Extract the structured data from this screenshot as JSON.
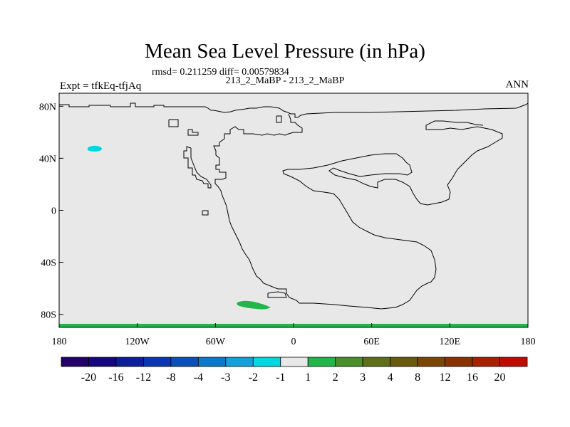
{
  "title": "Mean Sea Level Pressure (in hPa)",
  "stats": "rmsd= 0.211259  diff= 0.00579834",
  "cases": "213_2_MaBP - 213_2_MaBP",
  "left_label": "Expt = tfkEq-tfjAq",
  "right_label": "ANN",
  "colors": {
    "background_field": "#e8e8e8",
    "frame": "#000000",
    "coast": "#000000",
    "anomaly_negative_patch": "#00d8e0",
    "anomaly_positive_patch": "#22b64a"
  },
  "chart_data": {
    "type": "heatmap",
    "xlim": [
      -180,
      180
    ],
    "ylim": [
      -90,
      90
    ],
    "x_ticks": [
      {
        "value": -180,
        "label": "180"
      },
      {
        "value": -120,
        "label": "120W"
      },
      {
        "value": -60,
        "label": "60W"
      },
      {
        "value": 0,
        "label": "0"
      },
      {
        "value": 60,
        "label": "60E"
      },
      {
        "value": 120,
        "label": "120E"
      },
      {
        "value": 180,
        "label": "180"
      }
    ],
    "y_ticks": [
      {
        "value": 80,
        "label": "80N"
      },
      {
        "value": 40,
        "label": "40N"
      },
      {
        "value": 0,
        "label": "0"
      },
      {
        "value": -40,
        "label": "40S"
      },
      {
        "value": -80,
        "label": "80S"
      }
    ],
    "colorbar": {
      "colors": [
        "#24006a",
        "#15077f",
        "#0c1d9c",
        "#0b36b3",
        "#0a4fba",
        "#0a78cc",
        "#14a0d9",
        "#00d8e0",
        "#e8e8e8",
        "#22b64a",
        "#4a8f2b",
        "#5e6e19",
        "#6a5a0e",
        "#7a4606",
        "#8a3100",
        "#a82000",
        "#c00c00"
      ],
      "labels": [
        "-20",
        "-16",
        "-12",
        "-8",
        "-4",
        "-3",
        "-2",
        "-1",
        "1",
        "2",
        "3",
        "4",
        "8",
        "12",
        "16",
        "20"
      ]
    }
  }
}
